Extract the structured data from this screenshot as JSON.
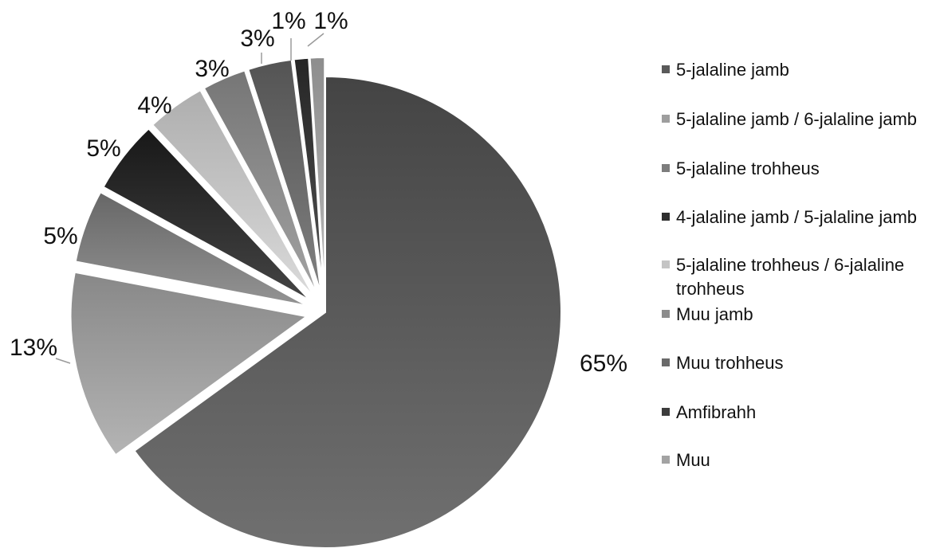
{
  "chart_data": {
    "type": "pie",
    "title": "",
    "legend_position": "right",
    "slices": [
      {
        "label": "5-jalaline jamb",
        "value": 65,
        "value_label": "65%",
        "color": "#5a5a5a"
      },
      {
        "label": "5-jalaline jamb / 6-jalaline jamb",
        "value": 13,
        "value_label": "13%",
        "color": "#9e9e9e"
      },
      {
        "label": "5-jalaline trohheus",
        "value": 5,
        "value_label": "5%",
        "color": "#7d7d7d"
      },
      {
        "label": "4-jalaline jamb / 5-jalaline jamb",
        "value": 5,
        "value_label": "5%",
        "color": "#2e2e2e"
      },
      {
        "label": "5-jalaline trohheus / 6-jalaline trohheus",
        "value": 4,
        "value_label": "4%",
        "color": "#c4c4c4"
      },
      {
        "label": "Muu jamb",
        "value": 3,
        "value_label": "3%",
        "color": "#8c8c8c"
      },
      {
        "label": "Muu trohheus",
        "value": 3,
        "value_label": "3%",
        "color": "#6a6a6a"
      },
      {
        "label": "Amfibrahh",
        "value": 1,
        "value_label": "1%",
        "color": "#3c3c3c"
      },
      {
        "label": "Muu",
        "value": 1,
        "value_label": "1%",
        "color": "#a3a3a3"
      }
    ]
  }
}
